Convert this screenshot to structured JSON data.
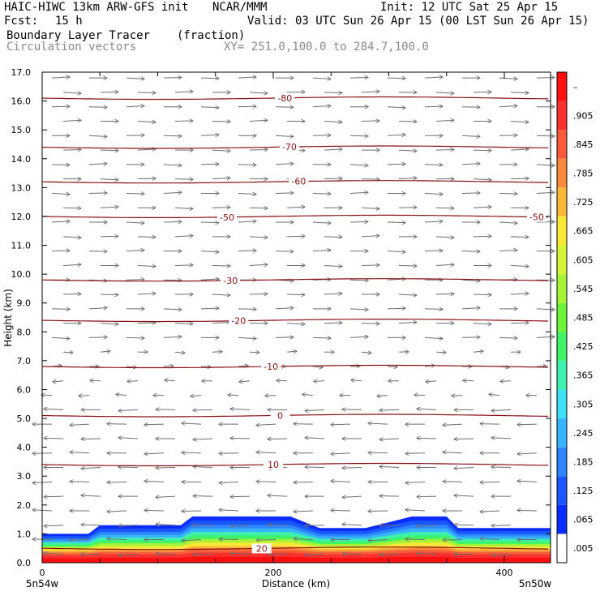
{
  "header": {
    "model": "HAIC-HIWC 13km ARW-GFS init",
    "org": "NCAR/MMM",
    "init": "Init: 12 UTC Sat 25 Apr 15",
    "fcst_label": "Fcst:",
    "fcst_value": "15 h",
    "valid": "Valid: 03 UTC Sun 26 Apr 15 (00 LST Sun 26 Apr 15)",
    "field": "Boundary Layer Tracer",
    "units": "(fraction)",
    "vectors": "Circulation vectors",
    "xy": "XY= 251.0,100.0 to 284.7,100.0"
  },
  "chart_data": {
    "type": "heatmap",
    "title": "Boundary Layer Tracer (fraction)",
    "xlabel": "Distance (km)",
    "ylabel": "Height (km)",
    "xlim": [
      0,
      440
    ],
    "ylim": [
      0,
      17
    ],
    "x_ticks": [
      "0",
      "200",
      "400"
    ],
    "x_tick_values": [
      0,
      200,
      400
    ],
    "x_end_labels": [
      "5n54w",
      "5n50w"
    ],
    "y_ticks": [
      "0.0",
      "1.0",
      "2.0",
      "3.0",
      "4.0",
      "5.0",
      "6.0",
      "7.0",
      "8.0",
      "9.0",
      "10.0",
      "11.0",
      "12.0",
      "13.0",
      "14.0",
      "15.0",
      "16.0",
      "17.0"
    ],
    "colorbar": {
      "labels": [
        ".005",
        ".065",
        ".125",
        ".185",
        ".245",
        ".305",
        ".365",
        ".425",
        ".485",
        ".545",
        ".605",
        ".665",
        ".725",
        ".785",
        ".845",
        ".905",
        "–"
      ],
      "colors": [
        "#ffffff",
        "#0a2cff",
        "#1856ff",
        "#2e86ff",
        "#36b4ff",
        "#3ee0f4",
        "#3ef0b0",
        "#40f46a",
        "#6cf43a",
        "#a6f438",
        "#d8f438",
        "#f8e838",
        "#f8b83a",
        "#f8883a",
        "#f85a3a",
        "#f83030",
        "#ff1010"
      ]
    },
    "tracer_top_km": {
      "x": [
        0,
        40,
        50,
        120,
        130,
        215,
        240,
        280,
        320,
        350,
        360,
        440
      ],
      "top": [
        1.0,
        1.0,
        1.3,
        1.3,
        1.6,
        1.6,
        1.2,
        1.2,
        1.6,
        1.6,
        1.2,
        1.2
      ],
      "core_top": [
        0.85,
        0.85,
        0.95,
        0.95,
        1.15,
        1.15,
        0.95,
        0.95,
        1.15,
        1.15,
        0.95,
        0.95
      ]
    },
    "temperature_contours": {
      "levels": [
        {
          "km": 0.5,
          "label": "20",
          "label_x": 190
        },
        {
          "km": 3.4,
          "label": "10",
          "label_x": 200
        },
        {
          "km": 5.1,
          "label": "0",
          "label_x": 206
        },
        {
          "km": 6.8,
          "label": "-10",
          "label_x": 198
        },
        {
          "km": 8.4,
          "label": "-20",
          "label_x": 170
        },
        {
          "km": 9.8,
          "label": "-30",
          "label_x": 163
        },
        {
          "km": 12.0,
          "label": "-50",
          "label_x": 160
        },
        {
          "km": 13.2,
          "label": "-60",
          "label_x": 222
        },
        {
          "km": 14.4,
          "label": "-70",
          "label_x": 214
        },
        {
          "km": 16.1,
          "label": "-80",
          "label_x": 210
        }
      ],
      "label_50_right_x": 428
    },
    "wind_vectors": {
      "regime_boundary_km": 6.6,
      "upper_direction": "east",
      "lower_direction": "west"
    }
  }
}
